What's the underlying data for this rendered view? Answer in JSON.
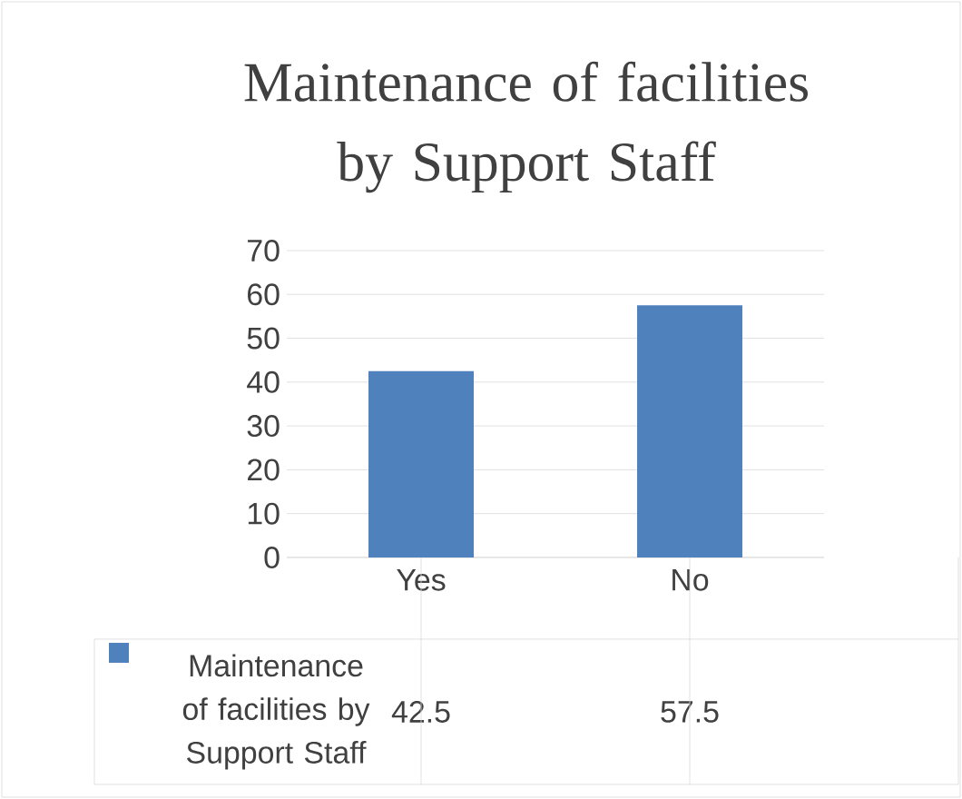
{
  "chart_data": {
    "type": "bar",
    "title": "Maintenance of facilities by Support Staff",
    "categories": [
      "Yes",
      "No"
    ],
    "series": [
      {
        "name": "Maintenance of facilities by Support Staff",
        "color": "#4f81bd",
        "values": [
          42.5,
          57.5
        ]
      }
    ],
    "ylim": [
      0,
      70
    ],
    "yticks": [
      0,
      10,
      20,
      30,
      40,
      50,
      60,
      70
    ],
    "grid": "y",
    "data_labels": true,
    "legend": "bottom left"
  }
}
